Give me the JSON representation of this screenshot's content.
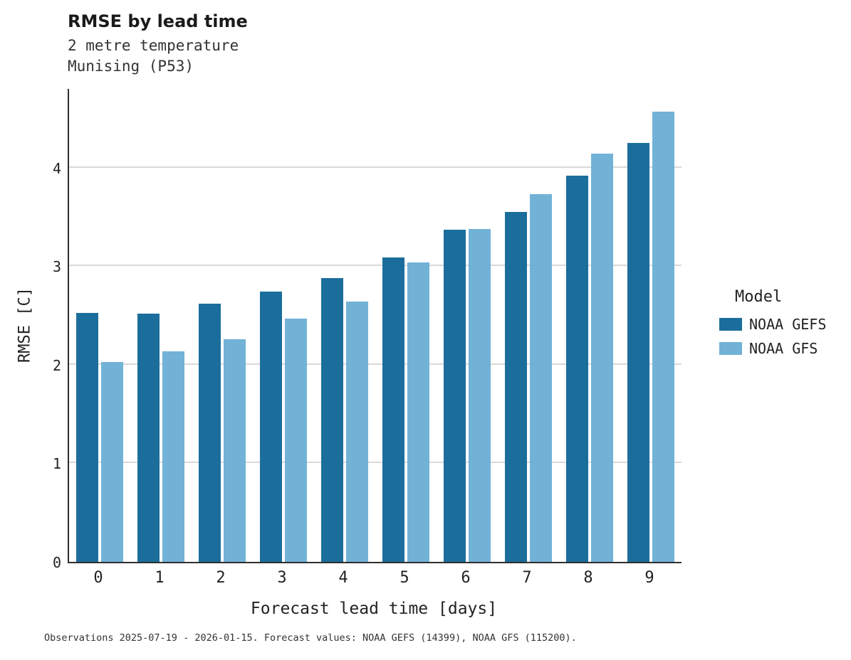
{
  "chart_data": {
    "type": "bar",
    "title": "RMSE by lead time",
    "subtitle": [
      "2 metre temperature",
      "Munising (P53)"
    ],
    "xlabel": "Forecast lead time [days]",
    "ylabel": "RMSE [C]",
    "categories": [
      "0",
      "1",
      "2",
      "3",
      "4",
      "5",
      "6",
      "7",
      "8",
      "9"
    ],
    "series": [
      {
        "name": "NOAA GEFS",
        "color": "#1b6e9c",
        "values": [
          2.53,
          2.52,
          2.62,
          2.74,
          2.88,
          3.09,
          3.37,
          3.55,
          3.92,
          4.25
        ]
      },
      {
        "name": "NOAA GFS",
        "color": "#72b2d7",
        "values": [
          2.03,
          2.14,
          2.26,
          2.47,
          2.64,
          3.04,
          3.38,
          3.73,
          4.14,
          4.57
        ]
      }
    ],
    "yticks": [
      0,
      1,
      2,
      3,
      4
    ],
    "ylim": [
      0,
      4.8
    ],
    "grid": true,
    "legend_title": "Model",
    "legend_position": "right"
  },
  "footer": {
    "text": "Observations 2025-07-19 - 2026-01-15. Forecast values: NOAA GEFS (14399), NOAA GFS (115200)."
  }
}
